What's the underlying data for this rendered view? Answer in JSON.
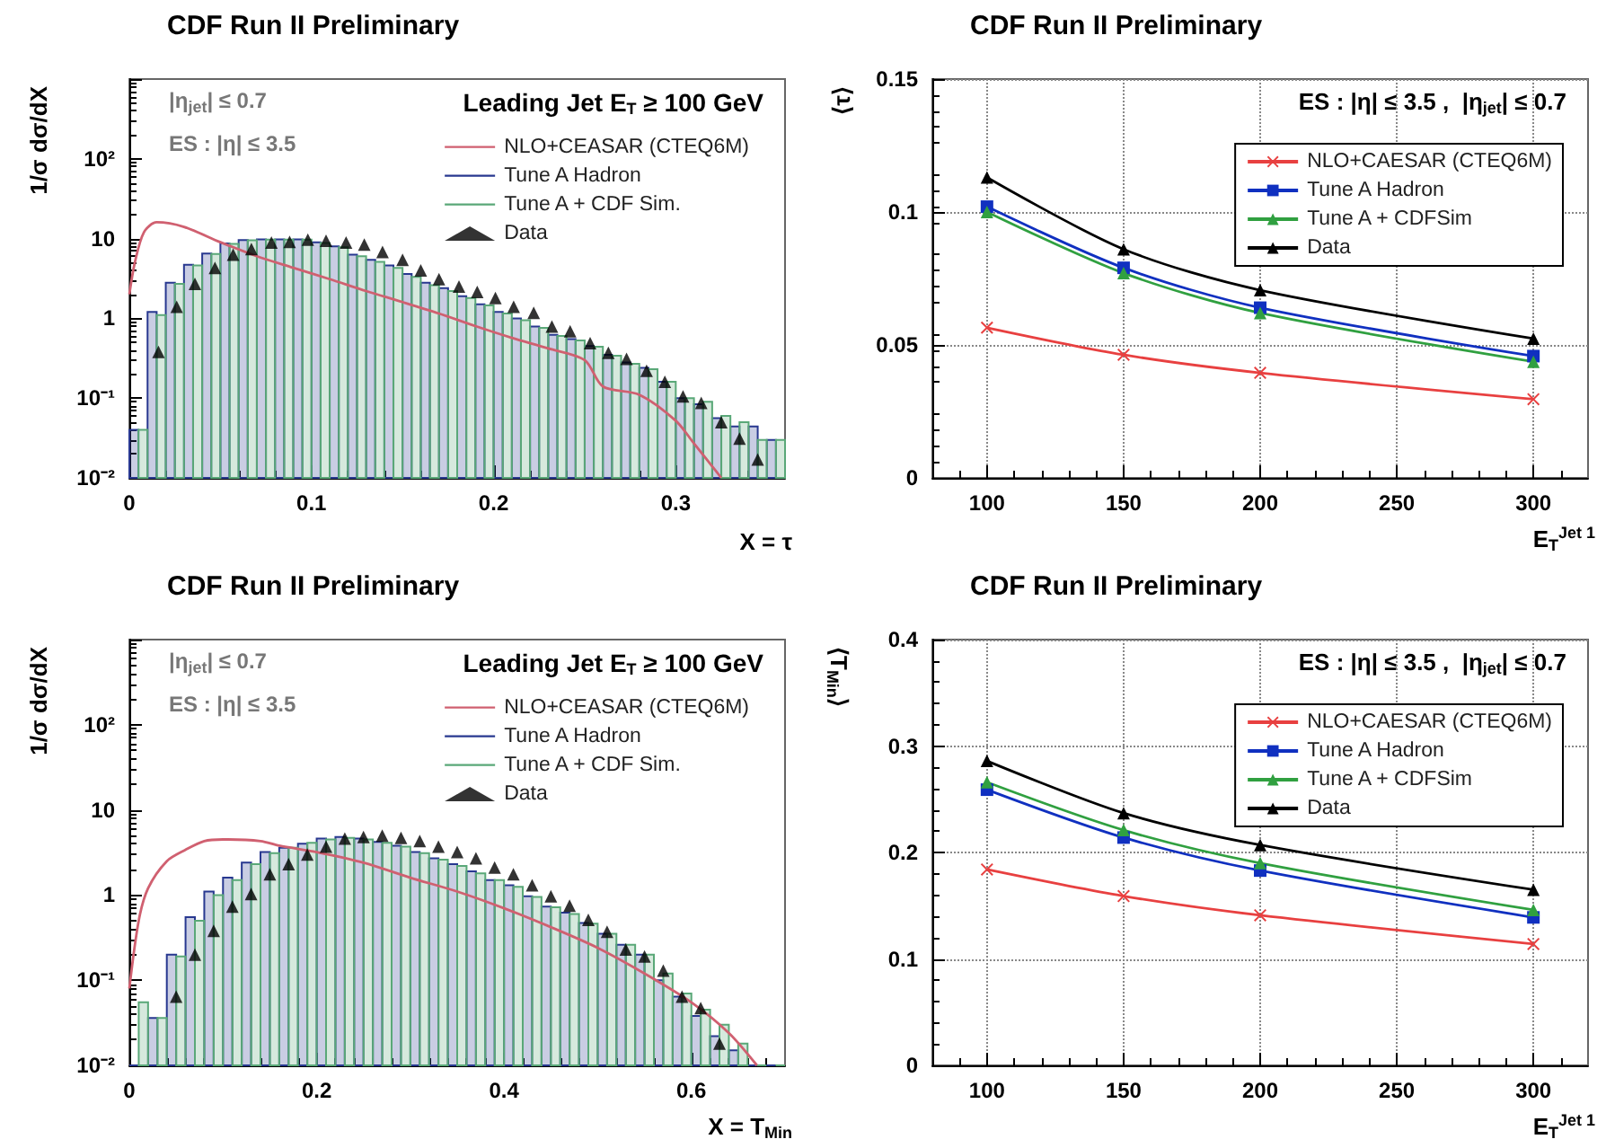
{
  "chart_data": [
    {
      "type": "histogram",
      "title": "CDF Run II Preliminary",
      "xlabel": "X = τ",
      "ylabel": "1/σ dσ/dX",
      "legend_title": "Leading Jet E$_{T}$ ≥ 100 GeV",
      "annotations": [
        "|η$_{jet}$| ≤ 0.7",
        "ES : |η| ≤ 3.5"
      ],
      "log": "y",
      "legend": "top right",
      "xlim": [
        0,
        0.36
      ],
      "xticks": [
        0,
        0.1,
        0.2,
        0.3
      ],
      "ylim": [
        0.01,
        1000
      ],
      "yticks": [
        {
          "value": 0.01,
          "label": "10⁻²"
        },
        {
          "value": 0.1,
          "label": "10⁻¹"
        },
        1,
        10,
        {
          "value": 100,
          "label": "10²"
        },
        {
          "value": 1000,
          "label": null
        }
      ],
      "bins": [
        0,
        0.01,
        0.02,
        0.03,
        0.04,
        0.05,
        0.06,
        0.07,
        0.08,
        0.09,
        0.1,
        0.11,
        0.12,
        0.13,
        0.14,
        0.15,
        0.16,
        0.17,
        0.18,
        0.19,
        0.2,
        0.21,
        0.22,
        0.23,
        0.24,
        0.25,
        0.26,
        0.27,
        0.28,
        0.29,
        0.3,
        0.31,
        0.32,
        0.33,
        0.34,
        0.35,
        0.36
      ],
      "series": [
        {
          "name": "NLO+CEASAR (CTEQ6M)",
          "type": "line",
          "color": "#d06070",
          "x": [
            0,
            0.003,
            0.008,
            0.015,
            0.03,
            0.05,
            0.07,
            0.09,
            0.11,
            0.13,
            0.15,
            0.17,
            0.19,
            0.21,
            0.23,
            0.25,
            0.26,
            0.28,
            0.3,
            0.31,
            0.32,
            0.325
          ],
          "values": [
            2,
            5,
            12,
            16,
            14,
            9,
            6,
            4.3,
            3.1,
            2.2,
            1.6,
            1.15,
            0.8,
            0.57,
            0.42,
            0.3,
            0.14,
            0.11,
            0.052,
            0.027,
            0.014,
            0.01
          ]
        },
        {
          "name": "Tune A Hadron",
          "color": "#283890",
          "values": [
            0.04,
            1.2,
            2.8,
            4.7,
            6.5,
            8.7,
            9.6,
            9.8,
            9.8,
            9.8,
            9.0,
            8.0,
            6.3,
            5.4,
            4.6,
            3.6,
            2.8,
            2.4,
            1.9,
            1.5,
            1.2,
            1.0,
            0.79,
            0.62,
            0.55,
            0.45,
            0.35,
            0.28,
            0.24,
            0.16,
            0.1,
            0.084,
            0.056,
            0.044,
            0.044,
            0.03
          ]
        },
        {
          "name": "Tune A + CDF Sim.",
          "color": "#5aa878",
          "values": [
            0.04,
            1.1,
            2.7,
            4.6,
            6.4,
            8.6,
            9.5,
            9.7,
            9.7,
            9.7,
            8.8,
            7.8,
            6.0,
            5.1,
            4.3,
            3.3,
            2.6,
            2.2,
            1.8,
            1.45,
            1.15,
            0.95,
            0.76,
            0.6,
            0.53,
            0.44,
            0.34,
            0.27,
            0.23,
            0.16,
            0.1,
            0.09,
            0.06,
            0.05,
            0.03,
            0.03
          ]
        },
        {
          "name": "Data",
          "type": "scatter",
          "marker": "triangle",
          "color": "#000000",
          "x": [
            0.016,
            0.026,
            0.036,
            0.047,
            0.057,
            0.067,
            0.078,
            0.088,
            0.098,
            0.108,
            0.119,
            0.129,
            0.139,
            0.15,
            0.16,
            0.17,
            0.181,
            0.191,
            0.201,
            0.211,
            0.222,
            0.232,
            0.242,
            0.253,
            0.263,
            0.273,
            0.284,
            0.294,
            0.304,
            0.314,
            0.325,
            0.335,
            0.345
          ],
          "values": [
            0.38,
            1.4,
            2.7,
            4.3,
            6.3,
            7.4,
            8.9,
            9.1,
            9.7,
            9.4,
            8.9,
            8.4,
            6.8,
            5.4,
            4.0,
            3.1,
            2.5,
            2.15,
            1.8,
            1.4,
            1.17,
            0.79,
            0.69,
            0.49,
            0.37,
            0.31,
            0.22,
            0.16,
            0.105,
            0.087,
            0.05,
            0.031,
            0.017
          ]
        }
      ]
    },
    {
      "type": "line",
      "title": "CDF Run II Preliminary",
      "xlabel": "E$_{T}$$^{Jet 1}$",
      "ylabel": "⟨τ⟩",
      "annotations": [
        "ES : |η| ≤ 3.5 ,  |η$_{jet}$| ≤ 0.7"
      ],
      "legend": "top right",
      "grid": true,
      "xlim": [
        80,
        320
      ],
      "xticks": [
        100,
        150,
        200,
        250,
        300
      ],
      "ylim": [
        0,
        0.15
      ],
      "yticks": [
        0,
        0.05,
        0.1,
        0.15
      ],
      "x": [
        100,
        150,
        200,
        300
      ],
      "series": [
        {
          "name": "NLO+CAESAR (CTEQ6M)",
          "marker": "cross",
          "color": "#e84040",
          "values": [
            0.0565,
            0.0463,
            0.0395,
            0.0296
          ]
        },
        {
          "name": "Tune A Hadron",
          "marker": "square",
          "color": "#1030c0",
          "values": [
            0.102,
            0.079,
            0.064,
            0.0458
          ]
        },
        {
          "name": "Tune A + CDFSim",
          "marker": "triangle",
          "color": "#30a040",
          "values": [
            0.1,
            0.077,
            0.062,
            0.0437
          ]
        },
        {
          "name": "Data",
          "marker": "triangle",
          "color": "#000000",
          "values": [
            0.113,
            0.086,
            0.0706,
            0.0524
          ]
        }
      ]
    },
    {
      "type": "histogram",
      "title": "CDF Run II Preliminary",
      "xlabel": "X = T$_{Min}$",
      "ylabel": "1/σ dσ/dX",
      "legend_title": "Leading Jet E$_{T}$ ≥ 100 GeV",
      "annotations": [
        "|η$_{jet}$| ≤ 0.7",
        "ES : |η| ≤ 3.5"
      ],
      "log": "y",
      "legend": "top right",
      "xlim": [
        0,
        0.7
      ],
      "xticks": [
        0,
        0.2,
        0.4,
        0.6
      ],
      "ylim": [
        0.01,
        1000
      ],
      "yticks": [
        {
          "value": 0.01,
          "label": "10⁻²"
        },
        {
          "value": 0.1,
          "label": "10⁻¹"
        },
        1,
        10,
        {
          "value": 100,
          "label": "10²"
        },
        {
          "value": 1000,
          "label": null
        }
      ],
      "bins": [
        0,
        0.02,
        0.04,
        0.06,
        0.08,
        0.1,
        0.12,
        0.14,
        0.16,
        0.18,
        0.2,
        0.22,
        0.24,
        0.26,
        0.28,
        0.3,
        0.32,
        0.34,
        0.36,
        0.38,
        0.4,
        0.42,
        0.44,
        0.46,
        0.48,
        0.5,
        0.52,
        0.54,
        0.56,
        0.58,
        0.6,
        0.62,
        0.64,
        0.66,
        0.68,
        0.7
      ],
      "series": [
        {
          "name": "NLO+CEASAR (CTEQ6M)",
          "type": "line",
          "color": "#d06070",
          "x": [
            0,
            0.01,
            0.02,
            0.04,
            0.06,
            0.08,
            0.1,
            0.14,
            0.16,
            0.2,
            0.25,
            0.3,
            0.35,
            0.4,
            0.45,
            0.5,
            0.55,
            0.6,
            0.64,
            0.67
          ],
          "values": [
            0.08,
            0.5,
            1.2,
            2.5,
            3.4,
            4.3,
            4.5,
            4.3,
            3.8,
            3.2,
            2.4,
            1.6,
            1.1,
            0.7,
            0.42,
            0.24,
            0.12,
            0.055,
            0.024,
            0.01
          ]
        },
        {
          "name": "Tune A Hadron",
          "color": "#283890",
          "values": [
            0.01,
            0.036,
            0.2,
            0.55,
            1.1,
            1.6,
            2.4,
            3.2,
            3.6,
            4.0,
            4.6,
            4.8,
            4.6,
            4.2,
            3.8,
            3.2,
            2.7,
            2.3,
            1.9,
            1.5,
            1.3,
            0.97,
            0.73,
            0.62,
            0.47,
            0.35,
            0.26,
            0.2,
            0.1,
            0.064,
            0.038,
            0.022,
            0.015,
            0.01,
            0.01
          ]
        },
        {
          "name": "Tune A + CDF Sim.",
          "color": "#5aa878",
          "values": [
            0.055,
            0.036,
            0.19,
            0.5,
            1.0,
            1.5,
            2.3,
            3.1,
            3.6,
            4.1,
            4.5,
            4.7,
            4.5,
            4.1,
            3.7,
            3.1,
            2.6,
            2.2,
            1.8,
            1.5,
            1.25,
            0.95,
            0.72,
            0.6,
            0.46,
            0.35,
            0.26,
            0.2,
            0.12,
            0.07,
            0.045,
            0.03,
            0.018,
            0.01,
            0.01
          ]
        },
        {
          "name": "Data",
          "type": "scatter",
          "marker": "triangle",
          "color": "#000000",
          "x": [
            0.05,
            0.07,
            0.09,
            0.11,
            0.13,
            0.15,
            0.17,
            0.19,
            0.21,
            0.23,
            0.25,
            0.27,
            0.29,
            0.31,
            0.33,
            0.35,
            0.37,
            0.39,
            0.41,
            0.43,
            0.45,
            0.47,
            0.49,
            0.51,
            0.53,
            0.55,
            0.57,
            0.59,
            0.61,
            0.63
          ],
          "values": [
            0.064,
            0.2,
            0.38,
            0.73,
            1.03,
            1.75,
            2.3,
            3.0,
            3.7,
            4.6,
            4.8,
            5.0,
            4.7,
            4.3,
            3.7,
            3.2,
            2.7,
            2.1,
            1.75,
            1.3,
            0.97,
            0.75,
            0.51,
            0.37,
            0.23,
            0.19,
            0.13,
            0.064,
            0.047,
            0.018
          ]
        }
      ]
    },
    {
      "type": "line",
      "title": "CDF Run II Preliminary",
      "xlabel": "E$_{T}$$^{Jet 1}$",
      "ylabel": "⟨T$_{Min}$⟩",
      "annotations": [
        "ES : |η| ≤ 3.5 ,  |η$_{jet}$| ≤ 0.7"
      ],
      "legend": "top right",
      "grid": true,
      "xlim": [
        80,
        320
      ],
      "xticks": [
        100,
        150,
        200,
        250,
        300
      ],
      "ylim": [
        0,
        0.4
      ],
      "yticks": [
        0,
        0.1,
        0.2,
        0.3,
        0.4
      ],
      "x": [
        100,
        150,
        200,
        300
      ],
      "series": [
        {
          "name": "NLO+CAESAR (CTEQ6M)",
          "marker": "cross",
          "color": "#e84040",
          "values": [
            0.184,
            0.159,
            0.141,
            0.114
          ]
        },
        {
          "name": "Tune A Hadron",
          "marker": "square",
          "color": "#1030c0",
          "values": [
            0.259,
            0.214,
            0.183,
            0.139
          ]
        },
        {
          "name": "Tune A + CDFSim",
          "marker": "triangle",
          "color": "#30a040",
          "values": [
            0.266,
            0.221,
            0.19,
            0.146
          ]
        },
        {
          "name": "Data",
          "marker": "triangle",
          "color": "#000000",
          "values": [
            0.286,
            0.237,
            0.207,
            0.165
          ]
        }
      ]
    }
  ]
}
